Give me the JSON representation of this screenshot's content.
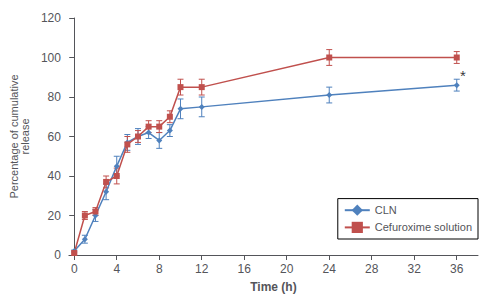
{
  "chart_data": {
    "type": "line",
    "xlabel": "Time (h)",
    "ylabel": "Percentage of cumulative\nrelease",
    "x": [
      0,
      1,
      2,
      3,
      4,
      5,
      6,
      7,
      8,
      9,
      10,
      12,
      24,
      36
    ],
    "series": [
      {
        "name": "CLN",
        "color": "#4F81BD",
        "marker": "diamond",
        "values": [
          2,
          8,
          20,
          32,
          45,
          57,
          60,
          62,
          58,
          63,
          74,
          75,
          81,
          86
        ],
        "errors": [
          0.5,
          2,
          3,
          4,
          5,
          4,
          4,
          3,
          4,
          3,
          5,
          5,
          4,
          3
        ]
      },
      {
        "name": "Cefuroxime solution",
        "color": "#C0504D",
        "marker": "square",
        "values": [
          1,
          20,
          22,
          37,
          40,
          56,
          60,
          65,
          65,
          70,
          85,
          85,
          100,
          100
        ],
        "errors": [
          0.5,
          2,
          2,
          3,
          4,
          4,
          3,
          3,
          3,
          3,
          4,
          4,
          4,
          3
        ]
      }
    ],
    "xlim": [
      -0.5,
      38
    ],
    "ylim": [
      0,
      120
    ],
    "xticks": [
      0,
      4,
      8,
      12,
      16,
      20,
      24,
      28,
      32,
      36
    ],
    "yticks": [
      0,
      20,
      40,
      60,
      80,
      100,
      120
    ],
    "annotations": [
      {
        "x": 36.3,
        "y": 91,
        "text": "*"
      }
    ],
    "legend": "lower right",
    "grid": false
  }
}
